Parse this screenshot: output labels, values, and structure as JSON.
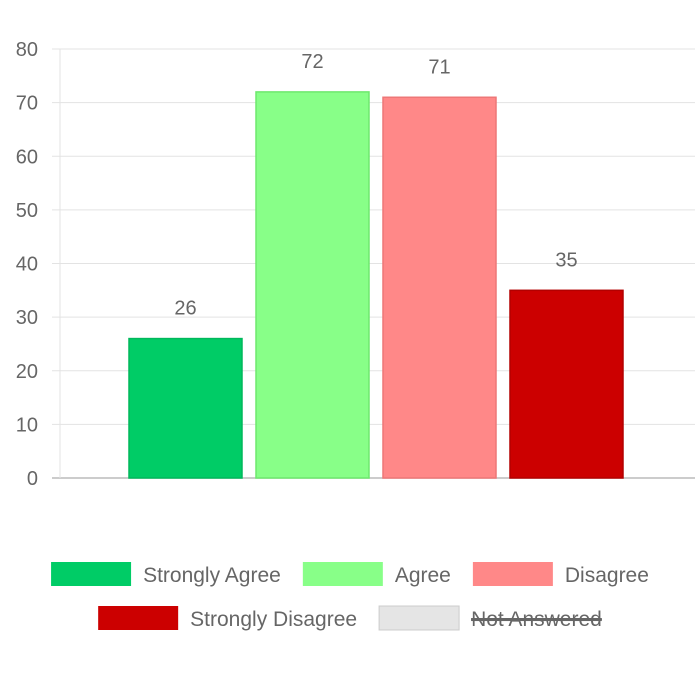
{
  "chart_data": {
    "type": "bar",
    "title": "",
    "xlabel": "",
    "ylabel": "",
    "ylim": [
      0,
      80
    ],
    "yticks": [
      0,
      10,
      20,
      30,
      40,
      50,
      60,
      70,
      80
    ],
    "grid": true,
    "legend_position": "bottom",
    "categories": [
      "Strongly Agree",
      "Agree",
      "Disagree",
      "Strongly Disagree"
    ],
    "values": [
      26,
      72,
      71,
      35
    ],
    "data_labels": [
      "26",
      "72",
      "71",
      "35"
    ],
    "colors": [
      "#00cc66",
      "#88ff88",
      "#ff8888",
      "#cc0000"
    ],
    "border_colors": [
      "#00b85c",
      "#6ee86e",
      "#ee7777",
      "#b30000"
    ],
    "legend": [
      {
        "label": "Strongly Agree",
        "color": "#00cc66",
        "hidden": false
      },
      {
        "label": "Agree",
        "color": "#88ff88",
        "hidden": false
      },
      {
        "label": "Disagree",
        "color": "#ff8888",
        "hidden": false
      },
      {
        "label": "Strongly Disagree",
        "color": "#cc0000",
        "hidden": false
      },
      {
        "label": "Not Answered",
        "color": "#e5e5e5",
        "hidden": true
      }
    ]
  }
}
